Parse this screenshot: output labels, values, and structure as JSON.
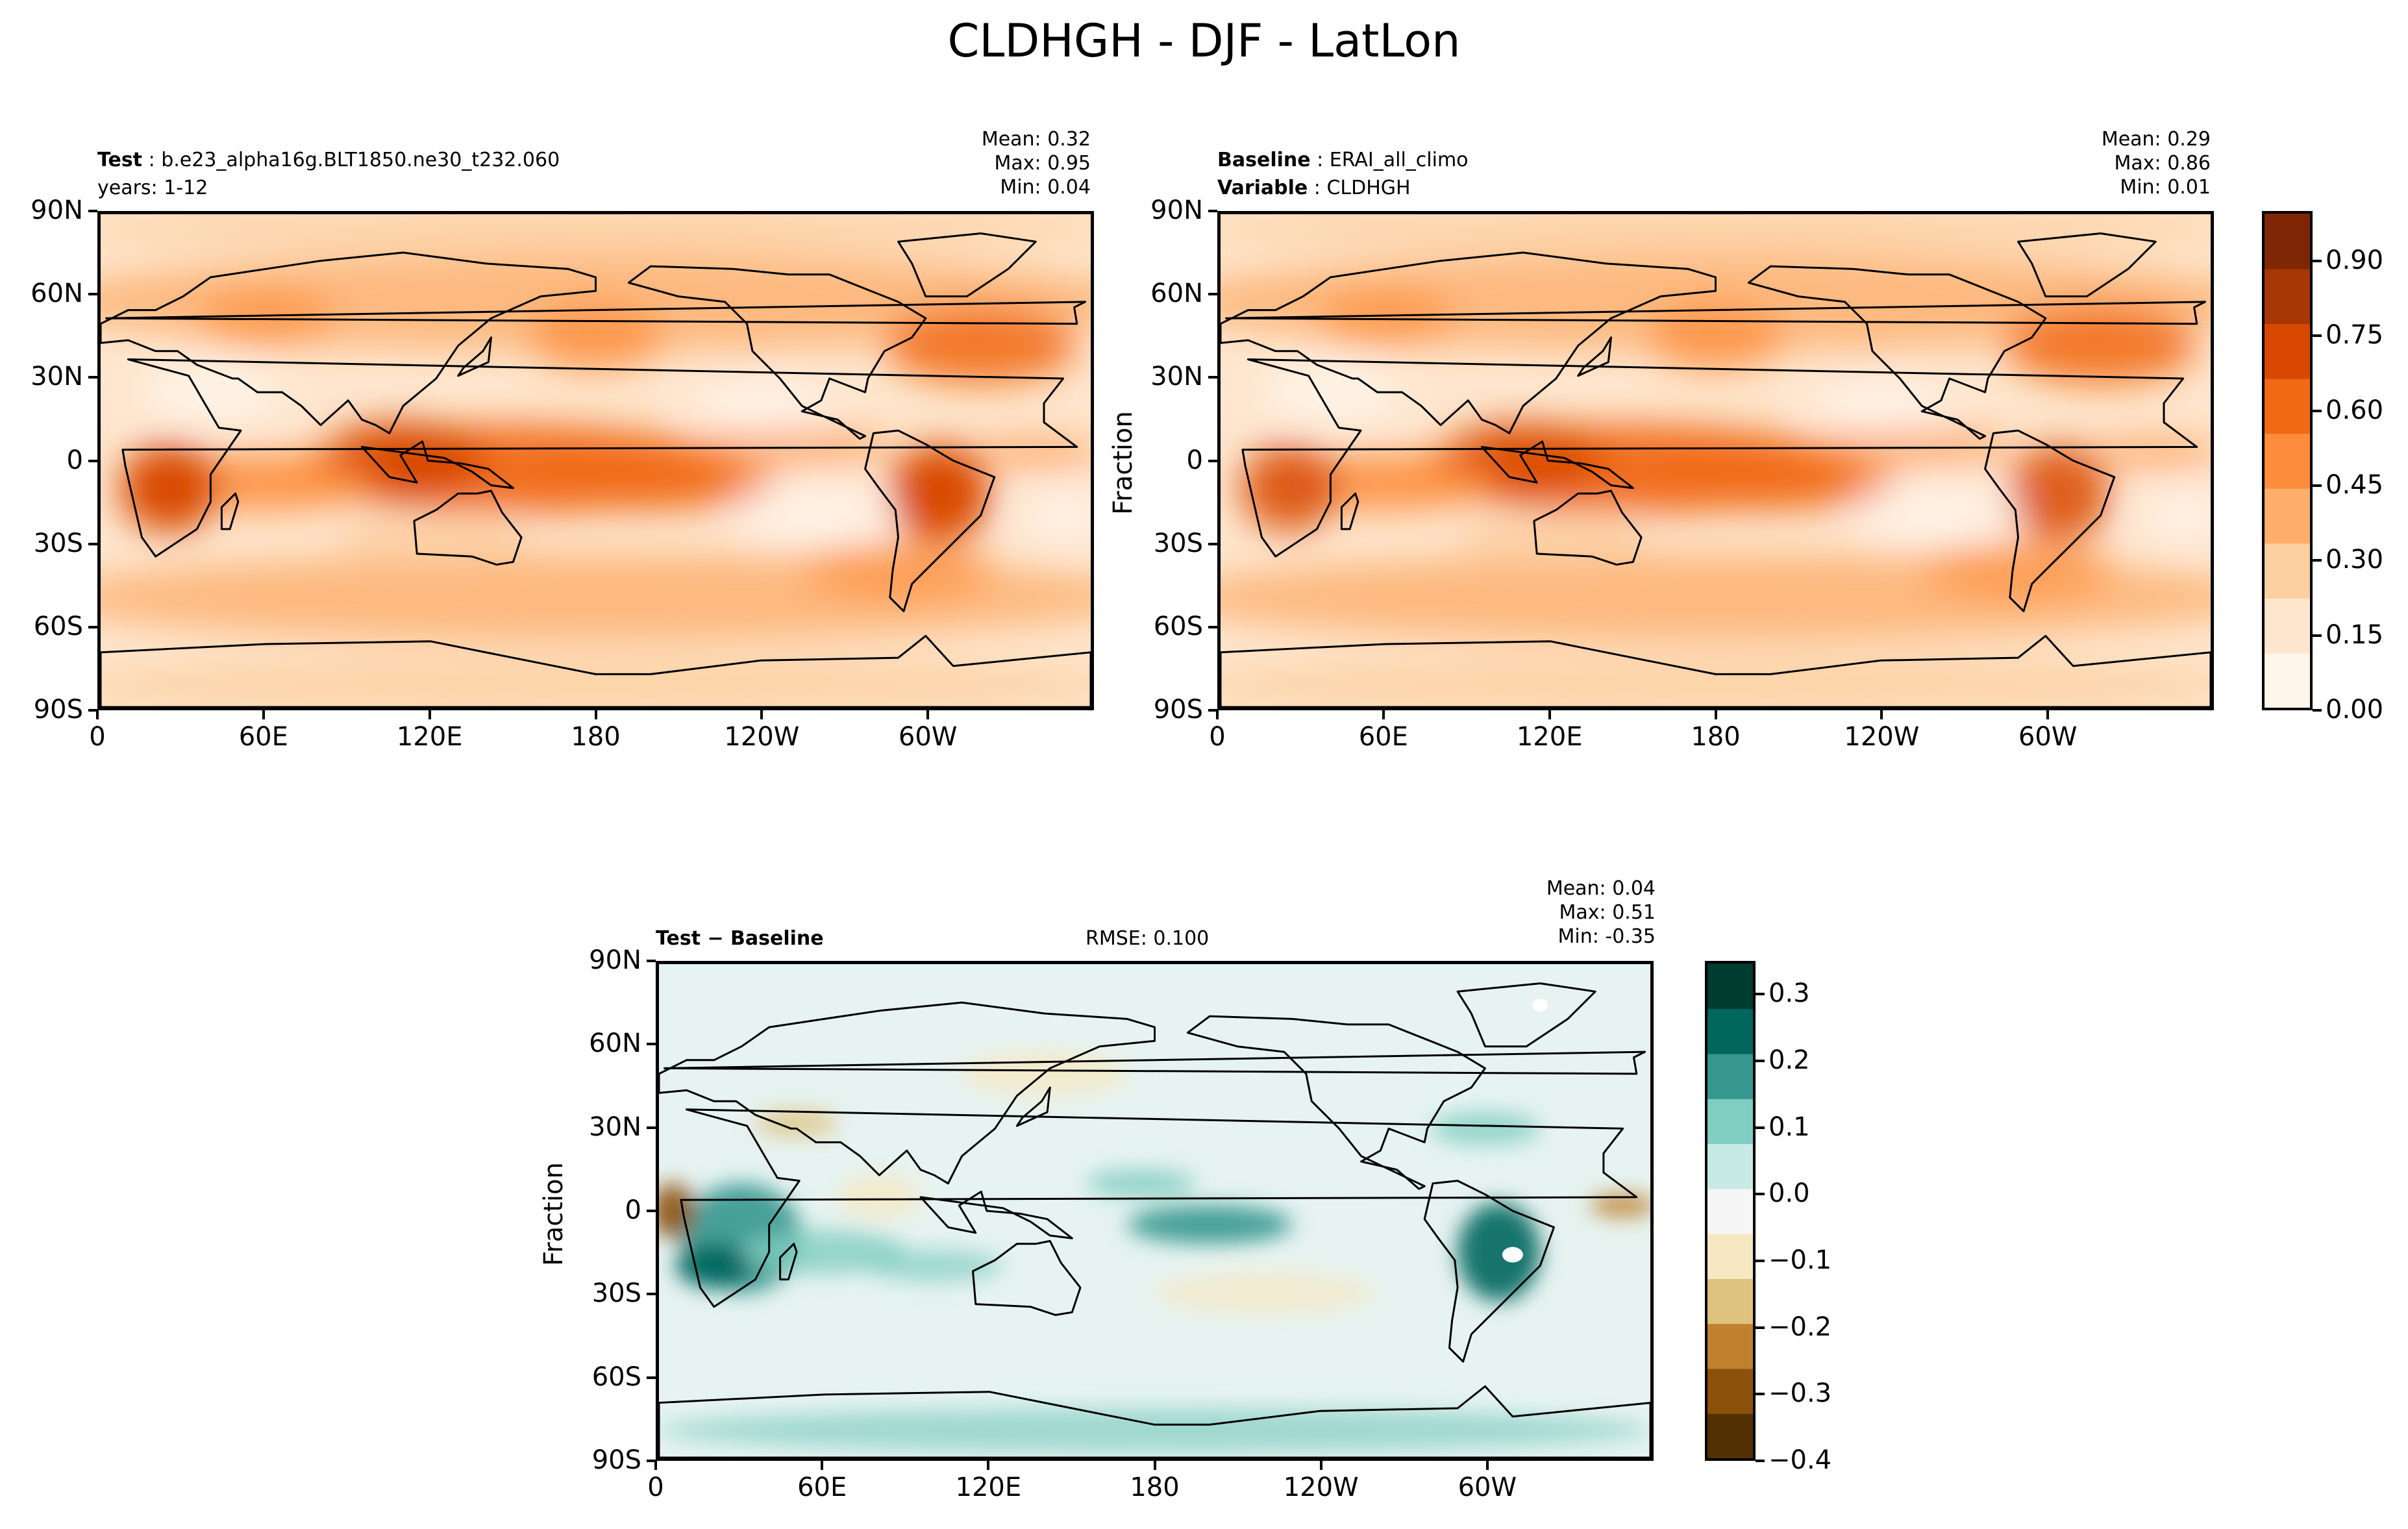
{
  "suptitle": "CLDHGH - DJF - LatLon",
  "panels": [
    {
      "id": "test",
      "left_title": [
        {
          "bold": "Test",
          "text": "b.e23_alpha16g.BLT1850.ne30_t232.060"
        },
        {
          "bold": "",
          "text": "years: 1-12"
        }
      ],
      "stats": [
        "Mean:  0.32",
        "Max:  0.95",
        "Min:  0.04"
      ],
      "ylabel": ""
    },
    {
      "id": "baseline",
      "left_title": [
        {
          "bold": "Baseline",
          "text": "ERAI_all_climo"
        },
        {
          "bold": "Variable",
          "text": "CLDHGH"
        }
      ],
      "stats": [
        "Mean:  0.29",
        "Max:  0.86",
        "Min:  0.01"
      ],
      "ylabel": "Fraction"
    },
    {
      "id": "diff",
      "left_title": [
        {
          "bold": "Test − Baseline",
          "text": ""
        }
      ],
      "center_title": "RMSE: 0.100",
      "stats": [
        "Mean:  0.04",
        "Max:  0.51",
        "Min: -0.35"
      ],
      "ylabel": "Fraction"
    }
  ],
  "chart_data": [
    {
      "type": "heatmap",
      "title": "Test",
      "x_ticks": [
        "0",
        "60E",
        "120E",
        "180",
        "120W",
        "60W"
      ],
      "y_ticks": [
        "90N",
        "60N",
        "30N",
        "0",
        "30S",
        "60S",
        "90S"
      ],
      "xlim": [
        0,
        360
      ],
      "ylim": [
        -90,
        90
      ],
      "stats": {
        "mean": 0.32,
        "max": 0.95,
        "min": 0.04
      }
    },
    {
      "type": "heatmap",
      "title": "Baseline",
      "x_ticks": [
        "0",
        "60E",
        "120E",
        "180",
        "120W",
        "60W"
      ],
      "y_ticks": [
        "90N",
        "60N",
        "30N",
        "0",
        "30S",
        "60S",
        "90S"
      ],
      "xlim": [
        0,
        360
      ],
      "ylim": [
        -90,
        90
      ],
      "stats": {
        "mean": 0.29,
        "max": 0.86,
        "min": 0.01
      },
      "colorbar": {
        "ticks": [
          "0.00",
          "0.15",
          "0.30",
          "0.45",
          "0.60",
          "0.75",
          "0.90"
        ],
        "range": [
          0,
          1.0
        ],
        "colors": [
          "#fff5eb",
          "#fee6ce",
          "#fdd0a2",
          "#fdae6b",
          "#fd8d3c",
          "#f16913",
          "#d94801",
          "#a63603",
          "#7f2704"
        ]
      }
    },
    {
      "type": "heatmap",
      "title": "Test − Baseline",
      "x_ticks": [
        "0",
        "60E",
        "120E",
        "180",
        "120W",
        "60W"
      ],
      "y_ticks": [
        "90N",
        "60N",
        "30N",
        "0",
        "30S",
        "60S",
        "90S"
      ],
      "xlim": [
        0,
        360
      ],
      "ylim": [
        -90,
        90
      ],
      "stats": {
        "mean": 0.04,
        "max": 0.51,
        "min": -0.35,
        "rmse": 0.1
      },
      "colorbar": {
        "ticks": [
          "0.3",
          "0.2",
          "0.1",
          "0.0",
          "−0.1",
          "−0.2",
          "−0.3",
          "−0.4"
        ],
        "range": [
          -0.4,
          0.35
        ],
        "colors": [
          "#543005",
          "#8c510a",
          "#bf812d",
          "#dfc27d",
          "#f6e8c3",
          "#f5f5f5",
          "#c7eae5",
          "#80cdc1",
          "#35978f",
          "#01665e",
          "#003c30"
        ]
      }
    }
  ]
}
